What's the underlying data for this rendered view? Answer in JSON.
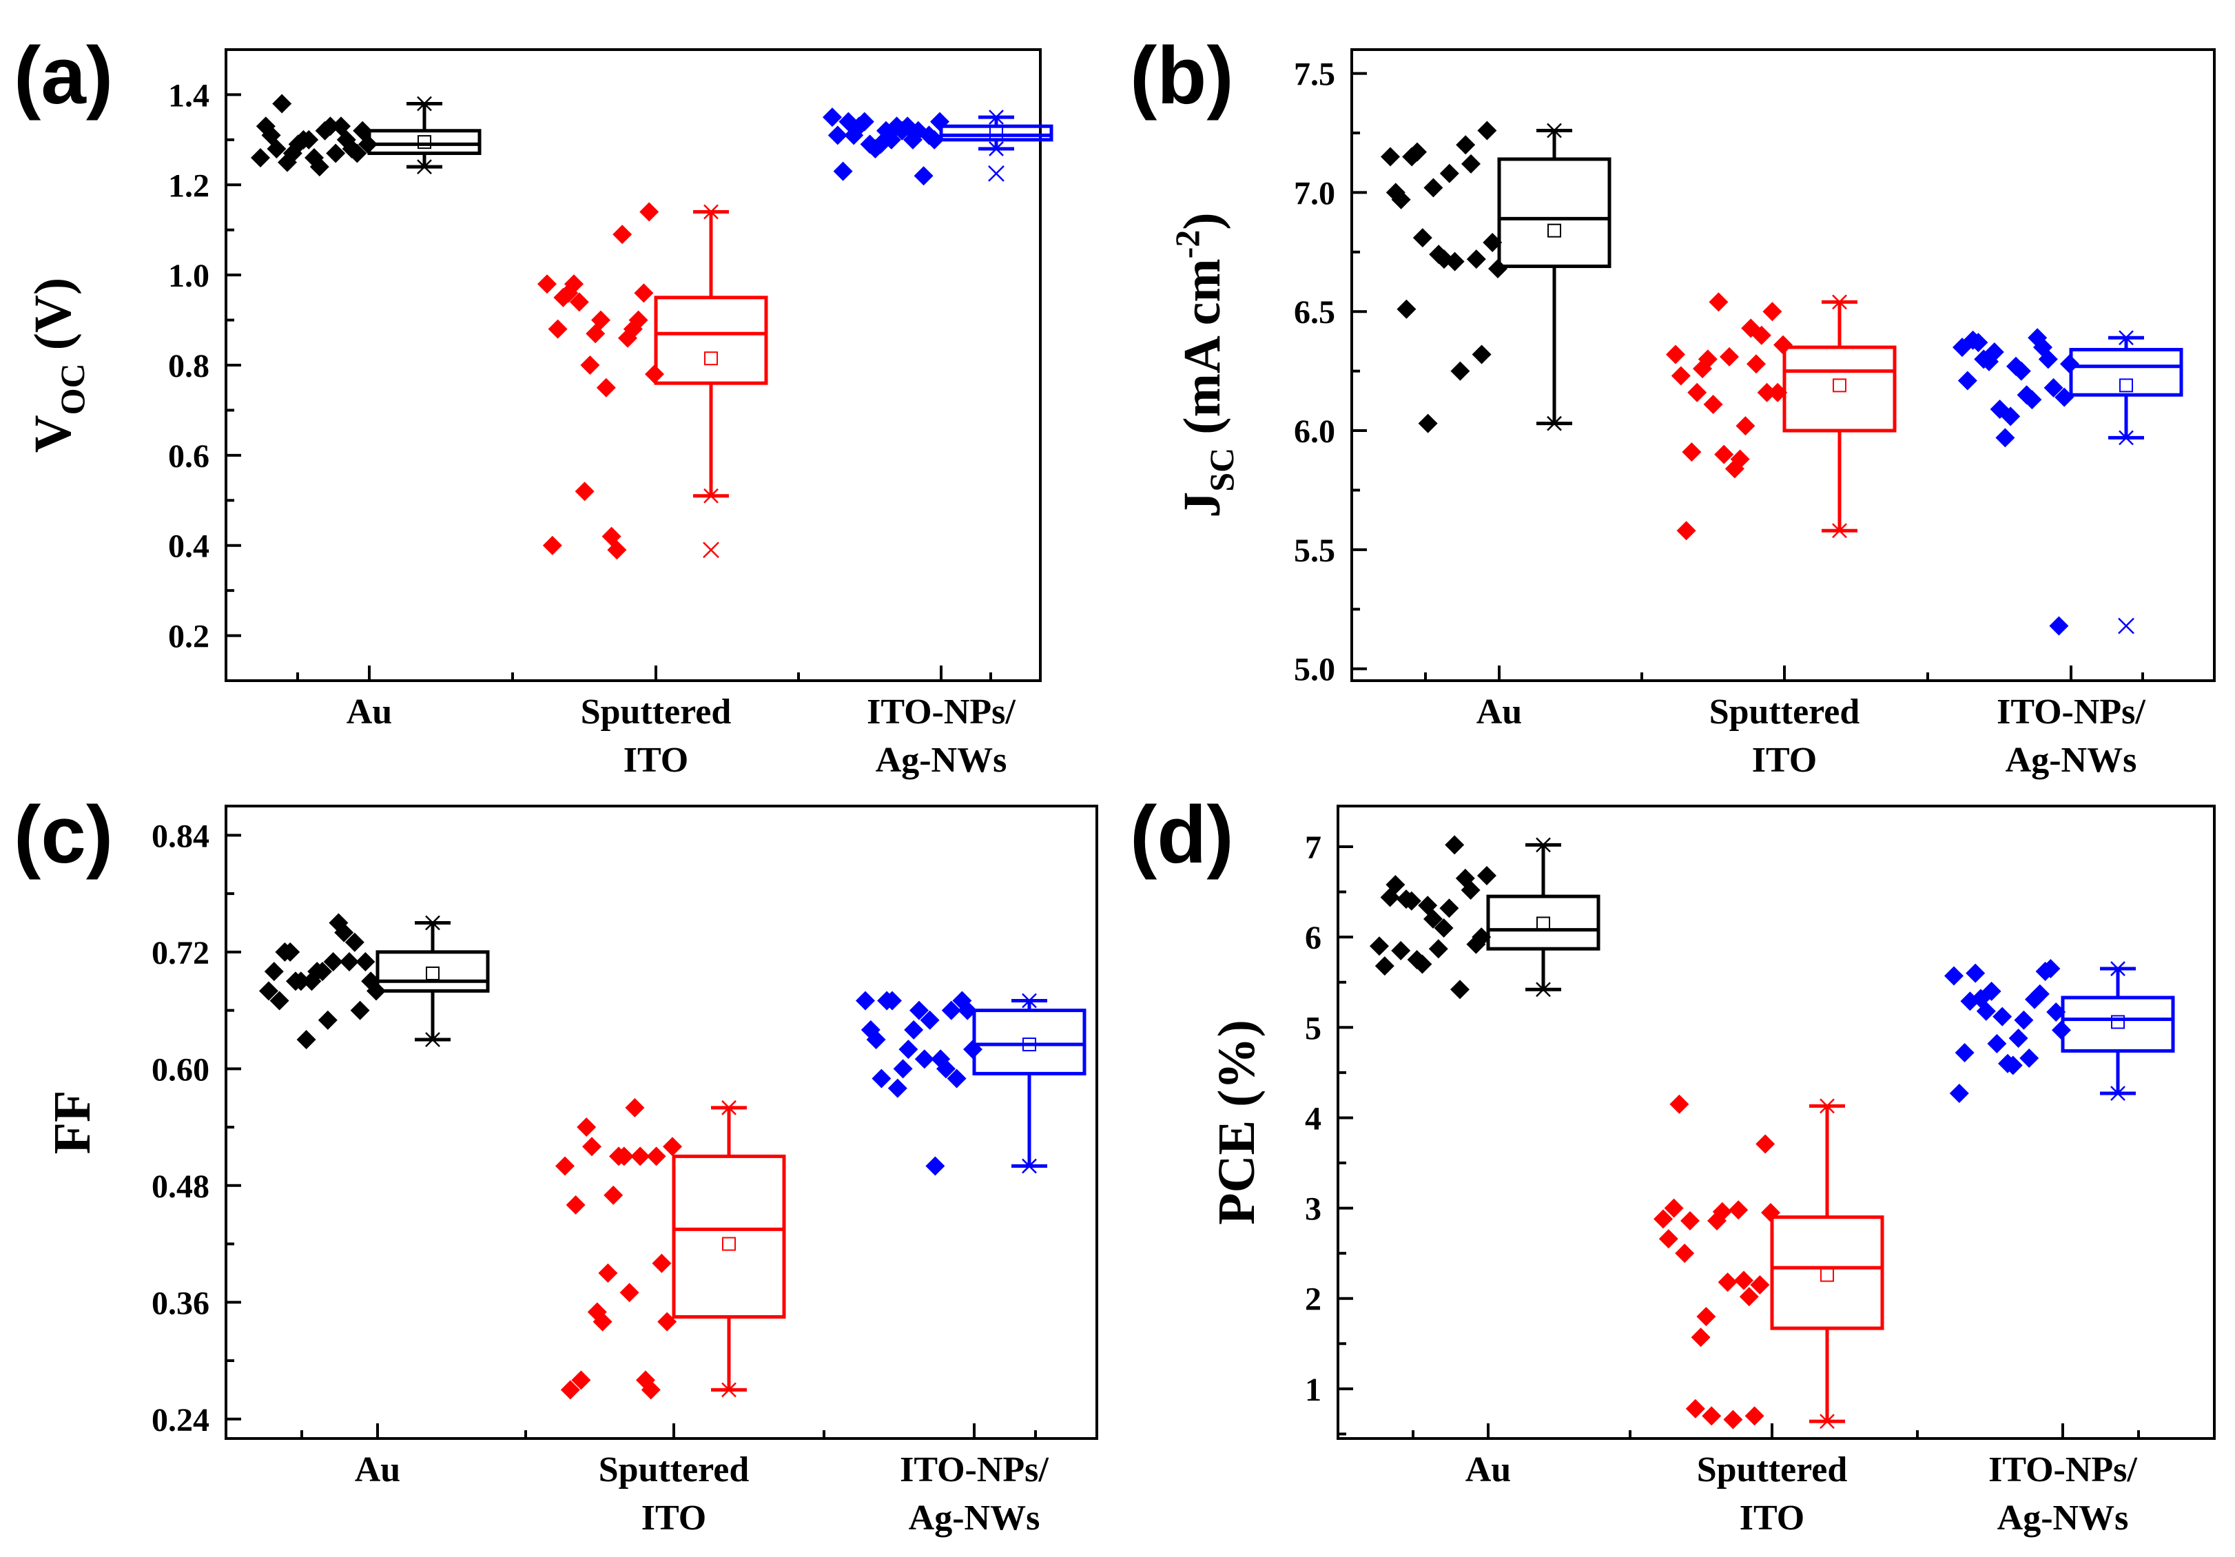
{
  "chart_data": [
    {
      "panel": "(a)",
      "type": "box",
      "ylabel": "V",
      "ylabel_sub": "OC",
      "ylabel_unit": " (V)",
      "ylim": [
        0.1,
        1.5
      ],
      "yticks": [
        0.2,
        0.4,
        0.6,
        0.8,
        1.0,
        1.2,
        1.4
      ],
      "yticklabels": [
        "0.2",
        "0.4",
        "0.6",
        "0.8",
        "1.0",
        "1.2",
        "1.4"
      ],
      "minor_step": 0.1,
      "categories": [
        [
          "Au"
        ],
        [
          "Sputtered",
          "ITO"
        ],
        [
          "ITO-NPs/",
          "Ag-NWs"
        ]
      ],
      "series": [
        {
          "name": "Au",
          "color": "#000000",
          "points": [
            1.26,
            1.3,
            1.24,
            1.27,
            1.33,
            1.28,
            1.32,
            1.29,
            1.31,
            1.27,
            1.33,
            1.3,
            1.28,
            1.32,
            1.27,
            1.3,
            1.38,
            1.29,
            1.33,
            1.26,
            1.25
          ],
          "box": {
            "q1": 1.27,
            "median": 1.29,
            "q3": 1.32,
            "mean": 1.295,
            "wlow": 1.24,
            "whigh": 1.38,
            "outliers": []
          }
        },
        {
          "name": "Sputtered ITO",
          "color": "#ff0000",
          "points": [
            0.98,
            0.88,
            0.75,
            0.94,
            0.4,
            0.9,
            0.42,
            0.52,
            0.88,
            0.96,
            0.39,
            0.8,
            0.95,
            1.14,
            1.09,
            0.87,
            0.96,
            0.78,
            0.86,
            0.9,
            0.98
          ],
          "box": {
            "q1": 0.76,
            "median": 0.87,
            "q3": 0.95,
            "mean": 0.815,
            "wlow": 0.51,
            "whigh": 1.14,
            "outliers": [
              0.39
            ]
          }
        },
        {
          "name": "ITO-NPs/Ag-NWs",
          "color": "#0000ff",
          "points": [
            1.35,
            1.32,
            1.3,
            1.34,
            1.31,
            1.22,
            1.33,
            1.29,
            1.23,
            1.31,
            1.32,
            1.28,
            1.34,
            1.3,
            1.33,
            1.29,
            1.31,
            1.34,
            1.3,
            1.32,
            1.33
          ],
          "box": {
            "q1": 1.3,
            "median": 1.31,
            "q3": 1.33,
            "mean": 1.315,
            "wlow": 1.28,
            "whigh": 1.35,
            "outliers": [
              1.225
            ]
          }
        }
      ]
    },
    {
      "panel": "(b)",
      "type": "box",
      "ylabel": "J",
      "ylabel_sub": "SC",
      "ylabel_unit": " (mA cm",
      "ylabel_sup": "-2",
      "ylabel_end": ")",
      "ylim": [
        4.95,
        7.6
      ],
      "yticks": [
        5.0,
        5.5,
        6.0,
        6.5,
        7.0,
        7.5
      ],
      "yticklabels": [
        "5.0",
        "5.5",
        "6.0",
        "6.5",
        "7.0",
        "7.5"
      ],
      "minor_step": 0.25,
      "categories": [
        [
          "Au"
        ],
        [
          "Sputtered",
          "ITO"
        ],
        [
          "ITO-NPs/",
          "Ag-NWs"
        ]
      ],
      "series": [
        {
          "name": "Au",
          "color": "#000000",
          "points": [
            7.15,
            6.72,
            7.08,
            6.81,
            7.0,
            6.32,
            6.71,
            6.03,
            6.97,
            7.26,
            6.25,
            7.02,
            6.51,
            6.79,
            7.2,
            6.74,
            7.15,
            6.68,
            7.12,
            6.72,
            7.17
          ],
          "box": {
            "q1": 6.69,
            "median": 6.89,
            "q3": 7.14,
            "mean": 6.84,
            "wlow": 6.03,
            "whigh": 7.26,
            "outliers": []
          }
        },
        {
          "name": "Sputtered ITO",
          "color": "#ff0000",
          "points": [
            6.32,
            6.4,
            5.84,
            6.3,
            6.23,
            6.16,
            5.88,
            6.11,
            5.58,
            6.5,
            6.02,
            6.54,
            5.91,
            6.16,
            6.43,
            5.9,
            6.16,
            6.36,
            6.28,
            6.31,
            6.26
          ],
          "box": {
            "q1": 6.0,
            "median": 6.25,
            "q3": 6.35,
            "mean": 6.19,
            "wlow": 5.58,
            "whigh": 6.54,
            "outliers": []
          }
        },
        {
          "name": "ITO-NPs/Ag-NWs",
          "color": "#0000ff",
          "points": [
            6.35,
            6.3,
            6.25,
            6.33,
            6.21,
            6.18,
            6.15,
            6.09,
            6.38,
            5.18,
            6.13,
            5.97,
            6.37,
            6.14,
            6.39,
            6.06,
            6.3,
            6.28,
            6.35,
            6.27,
            6.29
          ],
          "box": {
            "q1": 6.15,
            "median": 6.27,
            "q3": 6.34,
            "mean": 6.19,
            "wlow": 5.97,
            "whigh": 6.39,
            "outliers": [
              5.18
            ]
          }
        }
      ]
    },
    {
      "panel": "(c)",
      "type": "box",
      "ylabel": "FF",
      "ylim": [
        0.22,
        0.87
      ],
      "yticks": [
        0.24,
        0.36,
        0.48,
        0.6,
        0.72,
        0.84
      ],
      "yticklabels": [
        "0.24",
        "0.36",
        "0.48",
        "0.60",
        "0.72",
        "0.84"
      ],
      "minor_step": 0.06,
      "categories": [
        [
          "Au"
        ],
        [
          "Sputtered",
          "ITO"
        ],
        [
          "ITO-NPs/",
          "Ag-NWs"
        ]
      ],
      "series": [
        {
          "name": "Au",
          "color": "#000000",
          "points": [
            0.68,
            0.73,
            0.65,
            0.69,
            0.7,
            0.66,
            0.71,
            0.63,
            0.67,
            0.71,
            0.75,
            0.69,
            0.72,
            0.69,
            0.74,
            0.7,
            0.72,
            0.68,
            0.71,
            0.7,
            0.69
          ],
          "box": {
            "q1": 0.68,
            "median": 0.69,
            "q3": 0.72,
            "mean": 0.698,
            "wlow": 0.63,
            "whigh": 0.75,
            "outliers": []
          }
        },
        {
          "name": "Sputtered ITO",
          "color": "#ff0000",
          "points": [
            0.5,
            0.27,
            0.51,
            0.35,
            0.27,
            0.51,
            0.37,
            0.34,
            0.46,
            0.4,
            0.56,
            0.39,
            0.28,
            0.34,
            0.51,
            0.47,
            0.54,
            0.52,
            0.28,
            0.51,
            0.52
          ],
          "box": {
            "q1": 0.345,
            "median": 0.435,
            "q3": 0.51,
            "mean": 0.42,
            "wlow": 0.27,
            "whigh": 0.56,
            "outliers": []
          }
        },
        {
          "name": "ITO-NPs/Ag-NWs",
          "color": "#0000ff",
          "points": [
            0.67,
            0.66,
            0.61,
            0.58,
            0.64,
            0.59,
            0.65,
            0.6,
            0.63,
            0.67,
            0.5,
            0.62,
            0.59,
            0.66,
            0.61,
            0.64,
            0.67,
            0.62,
            0.6,
            0.66,
            0.67
          ],
          "box": {
            "q1": 0.595,
            "median": 0.625,
            "q3": 0.66,
            "mean": 0.625,
            "wlow": 0.5,
            "whigh": 0.67,
            "outliers": []
          }
        }
      ]
    },
    {
      "panel": "(d)",
      "type": "box",
      "ylabel": "PCE (%)",
      "ylim": [
        0.45,
        7.45
      ],
      "yticks": [
        1,
        2,
        3,
        4,
        5,
        6,
        7
      ],
      "yticklabels": [
        "1",
        "2",
        "3",
        "4",
        "5",
        "6",
        "7"
      ],
      "minor_step": 0.5,
      "categories": [
        [
          "Au"
        ],
        [
          "Sputtered",
          "ITO"
        ],
        [
          "ITO-NPs/",
          "Ag-NWs"
        ]
      ],
      "series": [
        {
          "name": "Au",
          "color": "#000000",
          "points": [
            5.9,
            6.65,
            5.87,
            6.4,
            5.68,
            6.52,
            6.1,
            5.75,
            6.44,
            5.92,
            6.32,
            5.7,
            6.58,
            6.0,
            7.02,
            6.35,
            5.85,
            6.68,
            5.42,
            6.2,
            6.42
          ],
          "box": {
            "q1": 5.87,
            "median": 6.08,
            "q3": 6.45,
            "mean": 6.15,
            "wlow": 5.42,
            "whigh": 7.02,
            "outliers": []
          }
        },
        {
          "name": "Sputtered ITO",
          "color": "#ff0000",
          "points": [
            2.88,
            2.02,
            2.96,
            0.78,
            2.66,
            0.7,
            2.18,
            1.57,
            3.0,
            2.15,
            0.66,
            1.8,
            4.15,
            3.71,
            2.98,
            0.7,
            2.5,
            2.95,
            2.2,
            2.86,
            2.86
          ],
          "box": {
            "q1": 1.67,
            "median": 2.34,
            "q3": 2.9,
            "mean": 2.26,
            "wlow": 0.64,
            "whigh": 4.13,
            "outliers": []
          }
        },
        {
          "name": "ITO-NPs/Ag-NWs",
          "color": "#0000ff",
          "points": [
            5.57,
            5.37,
            4.58,
            5.18,
            4.27,
            5.62,
            4.88,
            5.4,
            4.72,
            5.65,
            5.08,
            4.82,
            5.29,
            5.17,
            4.66,
            5.12,
            5.6,
            4.97,
            5.31,
            4.6,
            5.32
          ],
          "box": {
            "q1": 4.74,
            "median": 5.09,
            "q3": 5.33,
            "mean": 5.06,
            "wlow": 4.27,
            "whigh": 5.65,
            "outliers": []
          }
        }
      ]
    }
  ]
}
